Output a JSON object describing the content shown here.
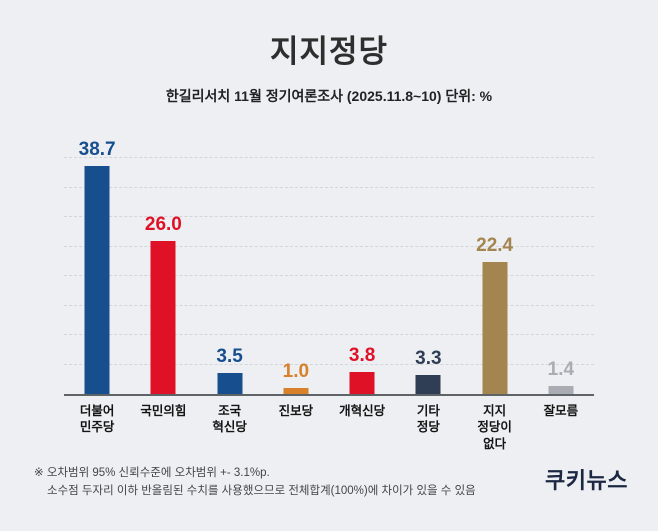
{
  "header": {
    "title": "지지정당",
    "subtitle": "한길리서치 11월 정기여론조사 (2025.11.8~10) 단위: %"
  },
  "chart_data": {
    "type": "bar",
    "title": "지지정당",
    "subtitle": "한길리서치 11월 정기여론조사 (2025.11.8~10)",
    "unit": "%",
    "categories": [
      "더불어\n민주당",
      "국민의힘",
      "조국\n혁신당",
      "진보당",
      "개혁신당",
      "기타\n정당",
      "지지\n정당이\n없다",
      "잘모름"
    ],
    "values": [
      38.7,
      26.0,
      3.5,
      1.0,
      3.8,
      3.3,
      22.4,
      1.4
    ],
    "labels": [
      "38.7",
      "26.0",
      "3.5",
      "1.0",
      "3.8",
      "3.3",
      "22.4",
      "1.4"
    ],
    "colors": [
      "#164e8e",
      "#df1126",
      "#164e8e",
      "#d8802a",
      "#df1126",
      "#2f3d55",
      "#a5854f",
      "#a9adb3"
    ],
    "ylim": [
      0,
      40
    ],
    "grid_step": 5,
    "grid": true,
    "legend": "none"
  },
  "footnote": {
    "line1": "※ 오차범위 95% 신뢰수준에 오차범위 +- 3.1%p.",
    "line2": "소수점 두자리 이하 반올림된 수치를 사용했으므로 전체합계(100%)에 차이가 있을 수 있음"
  },
  "logo": {
    "text": "쿠키뉴스"
  }
}
